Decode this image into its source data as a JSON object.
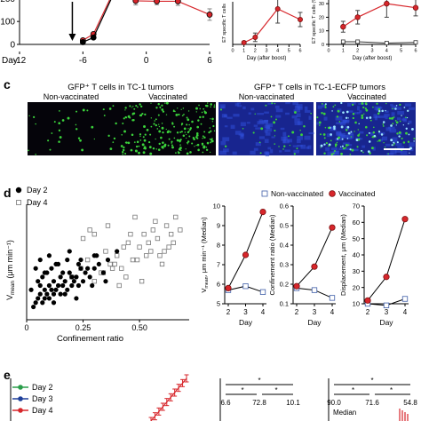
{
  "colors": {
    "vaccinated": "#d7262b",
    "non_vaccinated": "#3f5ea8",
    "day2": "#2a9d4a",
    "day3": "#1f3f9a",
    "day4": "#d7262b",
    "micro_bg": "#05040a",
    "gfp": "#3bd23b",
    "ecfp": "#1e2fb5"
  },
  "icons": {
    "arrow": "down-arrow-icon",
    "filled_marker": "filled-circle-marker-icon",
    "open_marker": "open-square-marker-icon"
  },
  "panels": {
    "c": {
      "letter": "c",
      "group_left": "GFP⁺ T cells in TC-1 tumors",
      "group_right": "GFP⁺ T cells in TC-1-ECFP tumors",
      "images": [
        "Non-vaccinated",
        "Vaccinated",
        "Non-vaccinated",
        "Vaccinated"
      ]
    },
    "d": {
      "letter": "d"
    },
    "e": {
      "letter": "e"
    }
  },
  "chart_data": [
    {
      "id": "top-left",
      "type": "line",
      "xlabel": "Day:",
      "x_ticks": [
        -12,
        -6,
        0,
        6
      ],
      "y_ticks": [
        0,
        100,
        200
      ],
      "xlim": [
        -12,
        6
      ],
      "ylim": [
        0,
        240
      ],
      "annotation": "arrow at day -7",
      "series": [
        {
          "color": "red",
          "x": [
            -6,
            -5,
            -3,
            -1,
            1,
            3,
            6
          ],
          "y": [
            18,
            45,
            240,
            190,
            188,
            188,
            130
          ],
          "err": [
            4,
            6,
            25,
            18,
            15,
            18,
            25
          ]
        },
        {
          "color": "black",
          "x": [
            -6,
            -5,
            -3
          ],
          "y": [
            10,
            30,
            230
          ],
          "err": [
            2,
            4,
            10
          ]
        }
      ]
    },
    {
      "id": "top-middle",
      "type": "line",
      "xlabel": "Day (after boost)",
      "ylabel": "E7 specific T cells",
      "x_ticks": [
        0,
        1,
        2,
        3,
        4,
        5,
        6
      ],
      "xlim": [
        0,
        6
      ],
      "ylim": [
        0,
        12
      ],
      "series": [
        {
          "color": "red",
          "x": [
            1,
            2,
            4,
            6
          ],
          "y": [
            0.5,
            2,
            10,
            7
          ],
          "err": [
            0.3,
            1.2,
            4,
            2
          ]
        }
      ]
    },
    {
      "id": "top-right",
      "type": "line",
      "xlabel": "Day (after boost)",
      "ylabel": "E7 specific T cells (%)",
      "x_ticks": [
        0,
        1,
        2,
        3,
        4,
        5,
        6
      ],
      "y_ticks": [
        0,
        10,
        20,
        30
      ],
      "xlim": [
        0,
        6
      ],
      "ylim": [
        0,
        34
      ],
      "series": [
        {
          "name": "Vaccinated",
          "x": [
            1,
            2,
            4,
            6
          ],
          "y": [
            13,
            20,
            30,
            27
          ],
          "err": [
            4,
            5,
            10,
            6
          ]
        },
        {
          "name": "Non-vaccinated",
          "x": [
            1,
            2,
            4,
            6
          ],
          "y": [
            2,
            2,
            1,
            1.5
          ],
          "err": [
            0.4,
            0.4,
            0.3,
            0.3
          ]
        }
      ]
    },
    {
      "id": "d-scatter",
      "type": "scatter",
      "xlabel": "Confinement ratio",
      "ylabel": "Vmean (μm min⁻¹)",
      "ylabel_main": "V",
      "ylabel_sub": "mean",
      "ylabel_rest": " (μm min⁻¹)",
      "x_ticks": [
        "0",
        "0.25",
        "0.50"
      ],
      "x_tick_values": [
        0,
        0.25,
        0.5
      ],
      "y_ticks": [
        0,
        5,
        10,
        15,
        20,
        25
      ],
      "xlim": [
        0,
        0.72
      ],
      "ylim": [
        0,
        27
      ],
      "legend": [
        "Day 2",
        "Day 4"
      ],
      "legend_position": "top-left",
      "series": [
        {
          "name": "Day 2",
          "marker": "filled-circle",
          "x": [
            0.03,
            0.04,
            0.05,
            0.06,
            0.06,
            0.07,
            0.08,
            0.08,
            0.09,
            0.1,
            0.1,
            0.11,
            0.12,
            0.12,
            0.13,
            0.14,
            0.15,
            0.15,
            0.16,
            0.17,
            0.18,
            0.19,
            0.2,
            0.21,
            0.22,
            0.23,
            0.24,
            0.25,
            0.26,
            0.28,
            0.3,
            0.32,
            0.34,
            0.36,
            0.05,
            0.07,
            0.09,
            0.11,
            0.13,
            0.16,
            0.18,
            0.2,
            0.23,
            0.27,
            0.31,
            0.04,
            0.06,
            0.1,
            0.14,
            0.19,
            0.24,
            0.3,
            0.02,
            0.08,
            0.12,
            0.17,
            0.22,
            0.29,
            0.35,
            0.4
          ],
          "y": [
            3,
            4,
            5,
            6,
            8,
            4,
            5,
            7,
            6,
            5,
            8,
            7,
            6,
            9,
            7,
            8,
            6,
            10,
            8,
            9,
            7,
            11,
            8,
            9,
            10,
            8,
            12,
            9,
            11,
            10,
            12,
            13,
            11,
            14,
            9,
            10,
            11,
            12,
            13,
            11,
            14,
            10,
            13,
            12,
            15,
            12,
            14,
            15,
            13,
            16,
            14,
            15,
            7,
            11,
            4,
            6,
            5,
            8,
            9,
            16
          ]
        },
        {
          "name": "Day 4",
          "marker": "open-square",
          "x": [
            0.2,
            0.24,
            0.27,
            0.3,
            0.33,
            0.35,
            0.37,
            0.4,
            0.42,
            0.45,
            0.47,
            0.5,
            0.52,
            0.55,
            0.58,
            0.6,
            0.62,
            0.65,
            0.68,
            0.3,
            0.36,
            0.41,
            0.44,
            0.48,
            0.53,
            0.57,
            0.63,
            0.25,
            0.34,
            0.39,
            0.46,
            0.51,
            0.56,
            0.61,
            0.66,
            0.28,
            0.38,
            0.43,
            0.49,
            0.54,
            0.59,
            0.64
          ],
          "y": [
            10,
            12,
            14,
            9,
            11,
            16,
            13,
            15,
            12,
            18,
            14,
            17,
            20,
            16,
            19,
            13,
            22,
            18,
            21,
            20,
            22,
            8,
            10,
            24,
            15,
            23,
            17,
            19,
            11,
            13,
            20,
            9,
            21,
            16,
            24,
            21,
            12,
            17,
            14,
            18,
            15,
            20
          ]
        }
      ]
    },
    {
      "id": "d-vmean",
      "type": "line",
      "xlabel": "Day",
      "ylabel": "Vmean, μm min⁻¹ (Median)",
      "ylabel_main": "V",
      "ylabel_sub": "mean",
      "ylabel_rest": ", μm min⁻¹ (Median)",
      "categories": [
        "2",
        "3",
        "4"
      ],
      "y_ticks": [
        5,
        6,
        7,
        8,
        9,
        10
      ],
      "ylim": [
        5,
        10
      ],
      "legend": [
        "Non-vaccinated",
        "Vaccinated"
      ],
      "legend_position": "top",
      "series": [
        {
          "name": "Non-vaccinated",
          "values": [
            5.7,
            5.9,
            5.6
          ]
        },
        {
          "name": "Vaccinated",
          "values": [
            5.8,
            7.5,
            9.7
          ]
        }
      ]
    },
    {
      "id": "d-confinement",
      "type": "line",
      "xlabel": "Day",
      "ylabel": "Confinement ratio (Median)",
      "categories": [
        "2",
        "3",
        "4"
      ],
      "y_ticks": [
        "0.1",
        "0.2",
        "0.3",
        "0.4",
        "0.5",
        "0.6"
      ],
      "y_tick_values": [
        0.1,
        0.2,
        0.3,
        0.4,
        0.5,
        0.6
      ],
      "ylim": [
        0.1,
        0.6
      ],
      "series": [
        {
          "name": "Non-vaccinated",
          "values": [
            0.18,
            0.17,
            0.13
          ]
        },
        {
          "name": "Vaccinated",
          "values": [
            0.19,
            0.29,
            0.49
          ]
        }
      ]
    },
    {
      "id": "d-displacement",
      "type": "line",
      "xlabel": "Day",
      "ylabel": "Displacement, μm (Median)",
      "categories": [
        "2",
        "3",
        "4"
      ],
      "y_ticks": [
        10,
        20,
        30,
        40,
        50,
        60,
        70
      ],
      "ylim": [
        10,
        70
      ],
      "series": [
        {
          "name": "Non-vaccinated",
          "values": [
            10,
            9,
            13
          ]
        },
        {
          "name": "Vaccinated",
          "values": [
            12,
            26.5,
            62
          ]
        }
      ]
    },
    {
      "id": "e-left",
      "type": "line",
      "legend": [
        "Day 2",
        "Day 3",
        "Day 4"
      ],
      "legend_position": "top-left",
      "series": [
        {
          "name": "Day 4",
          "x": [
            0,
            1,
            2,
            3,
            4,
            5,
            6,
            7,
            8,
            9
          ],
          "y": [
            10,
            14,
            18,
            22,
            26,
            30,
            34,
            38,
            42,
            46
          ]
        }
      ]
    },
    {
      "id": "e-middle",
      "type": "bar",
      "significance": [
        "*",
        "*",
        "*"
      ],
      "median_values": [
        "6.6",
        "72.8",
        "10.1"
      ]
    },
    {
      "id": "e-right",
      "type": "bar",
      "significance": [
        "*",
        "*",
        "*"
      ],
      "median_values": [
        "90.0",
        "71.6",
        "54.8"
      ],
      "value_label": "Median"
    }
  ]
}
